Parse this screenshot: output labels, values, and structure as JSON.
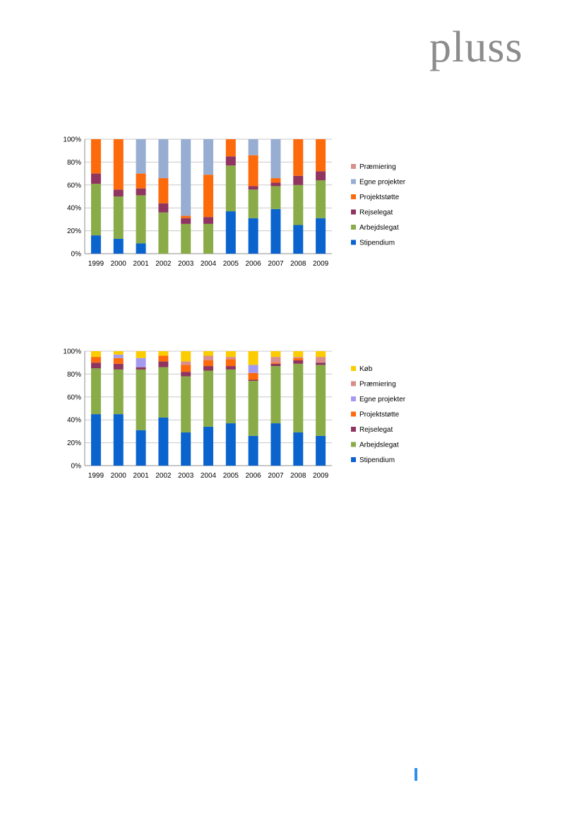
{
  "logo": {
    "text": "pluss"
  },
  "colors": {
    "Stipendium": "#0b63ce",
    "Arbejdslegat": "#8aac48",
    "Rejselegat": "#8f3560",
    "Projektstøtte": "#fc6a0c",
    "Egne projekter": "#98add2",
    "Præmiering": "#d98e8c",
    "Køb": "#fbcc00",
    "Egne projekter 2": "#a49bf0",
    "grid": "#c9c9c9",
    "page_mark": "#2e8ff0"
  },
  "chart_data": [
    {
      "type": "bar",
      "stacked": "percent",
      "grid": true,
      "legend_position": "right",
      "categories": [
        "1999",
        "2000",
        "2001",
        "2002",
        "2003",
        "2004",
        "2005",
        "2006",
        "2007",
        "2008",
        "2009"
      ],
      "ylim": [
        0,
        100
      ],
      "yticks": [
        "0%",
        "20%",
        "40%",
        "60%",
        "80%",
        "100%"
      ],
      "series": [
        {
          "name": "Stipendium",
          "color_key": "Stipendium",
          "values": [
            16,
            13,
            9,
            0,
            0,
            0,
            37,
            31,
            39,
            25,
            31
          ]
        },
        {
          "name": "Arbejdslegat",
          "color_key": "Arbejdslegat",
          "values": [
            45,
            37,
            42,
            36,
            26,
            26,
            40,
            25,
            20,
            35,
            33
          ]
        },
        {
          "name": "Rejselegat",
          "color_key": "Rejselegat",
          "values": [
            9,
            6,
            6,
            8,
            5,
            6,
            8,
            3,
            3,
            8,
            8
          ]
        },
        {
          "name": "Projektstøtte",
          "color_key": "Projektstøtte",
          "values": [
            30,
            44,
            13,
            22,
            2,
            37,
            15,
            27,
            4,
            32,
            28
          ]
        },
        {
          "name": "Egne projekter",
          "color_key": "Egne projekter",
          "values": [
            0,
            0,
            30,
            34,
            67,
            31,
            0,
            14,
            34,
            0,
            0
          ]
        },
        {
          "name": "Præmiering",
          "color_key": "Præmiering",
          "values": [
            0,
            0,
            0,
            0,
            0,
            0,
            0,
            0,
            0,
            0,
            0
          ]
        }
      ],
      "legend_order": [
        "Præmiering",
        "Egne projekter",
        "Projektstøtte",
        "Rejselegat",
        "Arbejdslegat",
        "Stipendium"
      ]
    },
    {
      "type": "bar",
      "stacked": "percent",
      "grid": true,
      "legend_position": "right",
      "categories": [
        "1999",
        "2000",
        "2001",
        "2002",
        "2003",
        "2004",
        "2005",
        "2006",
        "2007",
        "2008",
        "2009"
      ],
      "ylim": [
        0,
        100
      ],
      "yticks": [
        "0%",
        "20%",
        "40%",
        "60%",
        "80%",
        "100%"
      ],
      "series": [
        {
          "name": "Stipendium",
          "color_key": "Stipendium",
          "values": [
            45,
            45,
            31,
            42,
            29,
            34,
            37,
            26,
            37,
            29,
            26
          ]
        },
        {
          "name": "Arbejdslegat",
          "color_key": "Arbejdslegat",
          "values": [
            40,
            39,
            53,
            44,
            49,
            49,
            47,
            48,
            50,
            60,
            62
          ]
        },
        {
          "name": "Rejselegat",
          "color_key": "Rejselegat",
          "values": [
            5,
            5,
            2,
            5,
            4,
            4,
            3,
            1,
            2,
            3,
            2
          ]
        },
        {
          "name": "Projektstøtte",
          "color_key": "Projektstøtte",
          "values": [
            5,
            5,
            0,
            5,
            6,
            5,
            6,
            6,
            1,
            2,
            0
          ]
        },
        {
          "name": "Egne projekter",
          "color_key": "Egne projekter 2",
          "values": [
            0,
            3,
            8,
            0,
            0,
            0,
            0,
            7,
            0,
            0,
            0
          ]
        },
        {
          "name": "Præmiering",
          "color_key": "Præmiering",
          "values": [
            0,
            0,
            0,
            0,
            3,
            4,
            2,
            0,
            5,
            1,
            5
          ]
        },
        {
          "name": "Køb",
          "color_key": "Køb",
          "values": [
            5,
            3,
            6,
            4,
            9,
            4,
            5,
            12,
            5,
            5,
            5
          ]
        }
      ],
      "legend_order": [
        "Køb",
        "Præmiering",
        "Egne projekter",
        "Projektstøtte",
        "Rejselegat",
        "Arbejdslegat",
        "Stipendium"
      ]
    }
  ]
}
